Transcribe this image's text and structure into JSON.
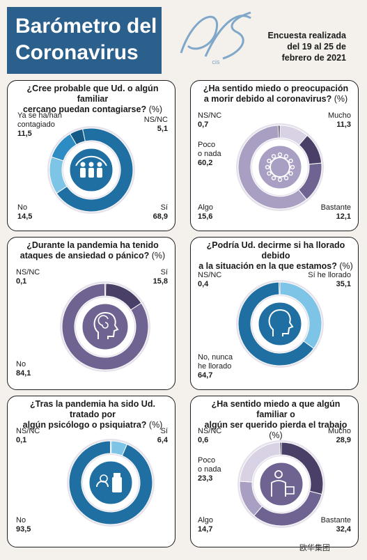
{
  "header": {
    "title_line1": "Barómetro del",
    "title_line2": "Coronavirus",
    "logo_text": "cis",
    "survey_line1": "Encuesta realizada",
    "survey_line2": "del 19 al 25 de",
    "survey_line3": "febrero de 2021"
  },
  "colors": {
    "blue_dark": "#1f6fa3",
    "blue_mid": "#2d8cc4",
    "blue_light": "#7ec4e6",
    "blue_pale": "#c2e3f3",
    "purple_dark": "#4a3f66",
    "purple_mid": "#6f6491",
    "purple_light": "#a99fc2",
    "purple_pale": "#d8d2e4"
  },
  "watermark": "欧华集团",
  "chart_data": [
    {
      "type": "pie",
      "title_line1": "¿Cree probable que Ud. o algún familiar",
      "title_line2": "cercano puedan contagiarse?",
      "unit": "(%)",
      "icon": "people-virus-icon",
      "slices": [
        {
          "name": "Sí",
          "value": 68.9,
          "value_label": "68,9",
          "color": "#1f6fa3"
        },
        {
          "name": "No",
          "value": 14.5,
          "value_label": "14,5",
          "color": "#7ec4e6"
        },
        {
          "name_line1": "Ya se ha/han",
          "name_line2": "contagiado",
          "value": 11.5,
          "value_label": "11,5",
          "color": "#2d8cc4"
        },
        {
          "name": "NS/NC",
          "value": 5.1,
          "value_label": "5,1",
          "color": "#155a86"
        }
      ]
    },
    {
      "type": "pie",
      "title_line1": "¿Ha sentido miedo o preocupación",
      "title_line2": "a morir debido al coronavirus?",
      "unit": "(%)",
      "icon": "virus-icon",
      "slices": [
        {
          "name": "Mucho",
          "value": 11.3,
          "value_label": "11,3",
          "color": "#d8d2e4"
        },
        {
          "name": "Bastante",
          "value": 12.1,
          "value_label": "12,1",
          "color": "#4a3f66"
        },
        {
          "name": "Algo",
          "value": 15.6,
          "value_label": "15,6",
          "color": "#6f6491"
        },
        {
          "name_line1": "Poco",
          "name_line2": "o nada",
          "value": 60.2,
          "value_label": "60,2",
          "color": "#a99fc2"
        },
        {
          "name": "NS/NC",
          "value": 0.7,
          "value_label": "0,7",
          "color": "#3a3152"
        }
      ]
    },
    {
      "type": "pie",
      "title_line1": "¿Durante la pandemia ha tenido",
      "title_line2": "ataques de ansiedad o pánico?",
      "unit": "(%)",
      "icon": "anxiety-head-icon",
      "slices": [
        {
          "name": "Sí",
          "value": 15.8,
          "value_label": "15,8",
          "color": "#4a3f66"
        },
        {
          "name": "No",
          "value": 84.1,
          "value_label": "84,1",
          "color": "#6f6491"
        },
        {
          "name": "NS/NC",
          "value": 0.1,
          "value_label": "0,1",
          "color": "#3a3152"
        }
      ]
    },
    {
      "type": "pie",
      "title_line1": "¿Podría Ud. decirme si ha llorado debido",
      "title_line2": "a la situación en la que estamos?",
      "unit": "(%)",
      "icon": "head-profile-icon",
      "slices": [
        {
          "name": "Sí he llorado",
          "value": 35.1,
          "value_label": "35,1",
          "color": "#7ec4e6"
        },
        {
          "name_line1": "No, nunca",
          "name_line2": "he llorado",
          "value": 64.7,
          "value_label": "64,7",
          "color": "#1f6fa3"
        },
        {
          "name": "NS/NC",
          "value": 0.4,
          "value_label": "0,4",
          "color": "#155a86"
        }
      ]
    },
    {
      "type": "pie",
      "title_line1": "¿Tras la pandemia ha sido Ud. tratado por",
      "title_line2": "algún psicólogo o psiquiatra?",
      "unit": "(%)",
      "icon": "pills-icon",
      "slices": [
        {
          "name": "Sí",
          "value": 6.4,
          "value_label": "6,4",
          "color": "#7ec4e6"
        },
        {
          "name": "No",
          "value": 93.5,
          "value_label": "93,5",
          "color": "#1f6fa3"
        },
        {
          "name": "NS/NC",
          "value": 0.1,
          "value_label": "0,1",
          "color": "#155a86"
        }
      ]
    },
    {
      "type": "pie",
      "title_line1": "¿Ha sentido miedo a que algún familiar o",
      "title_line2": "algún ser querido pierda el trabajo",
      "unit": "(%)",
      "icon": "worker-briefcase-icon",
      "slices": [
        {
          "name": "Mucho",
          "value": 28.9,
          "value_label": "28,9",
          "color": "#4a3f66"
        },
        {
          "name": "Bastante",
          "value": 32.4,
          "value_label": "32,4",
          "color": "#6f6491"
        },
        {
          "name": "Algo",
          "value": 14.7,
          "value_label": "14,7",
          "color": "#a99fc2"
        },
        {
          "name_line1": "Poco",
          "name_line2": "o nada",
          "value": 23.3,
          "value_label": "23,3",
          "color": "#d8d2e4"
        },
        {
          "name": "NS/NC",
          "value": 0.6,
          "value_label": "0,6",
          "color": "#3a3152"
        }
      ]
    }
  ]
}
